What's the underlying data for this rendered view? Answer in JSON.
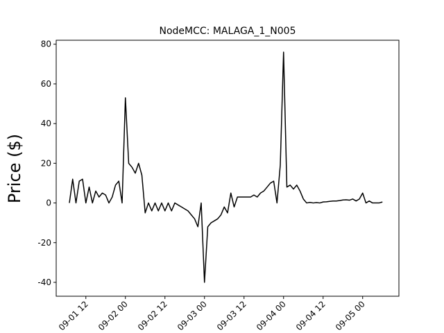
{
  "chart_data": {
    "type": "line",
    "title": "NodeMCC: MALAGA_1_N005",
    "y_label": "Price ($)",
    "color": "#000000",
    "x": [
      "09-01 07",
      "09-01 08",
      "09-01 09",
      "09-01 10",
      "09-01 11",
      "09-01 12",
      "09-01 13",
      "09-01 14",
      "09-01 15",
      "09-01 16",
      "09-01 17",
      "09-01 18",
      "09-01 19",
      "09-01 20",
      "09-01 21",
      "09-01 22",
      "09-01 23",
      "09-02 00",
      "09-02 01",
      "09-02 02",
      "09-02 03",
      "09-02 04",
      "09-02 05",
      "09-02 06",
      "09-02 07",
      "09-02 08",
      "09-02 09",
      "09-02 10",
      "09-02 11",
      "09-02 12",
      "09-02 13",
      "09-02 14",
      "09-02 15",
      "09-02 16",
      "09-02 17",
      "09-02 18",
      "09-02 19",
      "09-02 20",
      "09-02 21",
      "09-02 22",
      "09-02 23",
      "09-03 00",
      "09-03 01",
      "09-03 02",
      "09-03 03",
      "09-03 04",
      "09-03 05",
      "09-03 06",
      "09-03 07",
      "09-03 08",
      "09-03 09",
      "09-03 10",
      "09-03 11",
      "09-03 12",
      "09-03 13",
      "09-03 14",
      "09-03 15",
      "09-03 16",
      "09-03 17",
      "09-03 18",
      "09-03 19",
      "09-03 20",
      "09-03 21",
      "09-03 22",
      "09-03 23",
      "09-04 00",
      "09-04 01",
      "09-04 02",
      "09-04 03",
      "09-04 04",
      "09-04 05",
      "09-04 06",
      "09-04 07",
      "09-04 08",
      "09-04 09",
      "09-04 10",
      "09-04 11",
      "09-04 12",
      "09-04 13",
      "09-04 14",
      "09-04 15",
      "09-04 16",
      "09-04 17",
      "09-04 18",
      "09-04 19",
      "09-04 20",
      "09-04 21",
      "09-04 22",
      "09-04 23",
      "09-05 00",
      "09-05 01",
      "09-05 02",
      "09-05 03",
      "09-05 04",
      "09-05 05",
      "09-05 06"
    ],
    "values": [
      0,
      12,
      0,
      11,
      12,
      0,
      8,
      0,
      6,
      3,
      5,
      4,
      0,
      3,
      9,
      11,
      0,
      53,
      20,
      18,
      15,
      20,
      14,
      -5,
      0,
      -4,
      0,
      -4,
      0,
      -4,
      0,
      -4,
      0,
      -1,
      -2,
      -3,
      -4,
      -6,
      -8,
      -12,
      0,
      -40,
      -12,
      -10,
      -9,
      -8,
      -6,
      -2,
      -5,
      5,
      -2,
      3,
      3,
      3,
      3,
      3,
      4,
      3,
      5,
      6,
      8,
      10,
      11,
      0,
      19,
      76,
      8,
      9,
      7,
      9,
      6,
      2,
      0,
      0.3,
      0,
      0.2,
      0,
      0.5,
      0.6,
      0.8,
      1,
      1,
      1.2,
      1.5,
      1.6,
      1.4,
      2,
      1,
      2,
      5,
      0,
      1,
      0,
      0,
      0,
      0.5
    ],
    "xlim": [
      "09-01 03",
      "09-05 11"
    ],
    "xticks": [
      "09-01 12",
      "09-02 00",
      "09-02 12",
      "09-03 00",
      "09-03 12",
      "09-04 00",
      "09-04 12",
      "09-05 00"
    ],
    "ylim": [
      -47,
      82
    ],
    "yticks": [
      -40,
      -20,
      0,
      20,
      40,
      60,
      80
    ],
    "grid": false
  }
}
